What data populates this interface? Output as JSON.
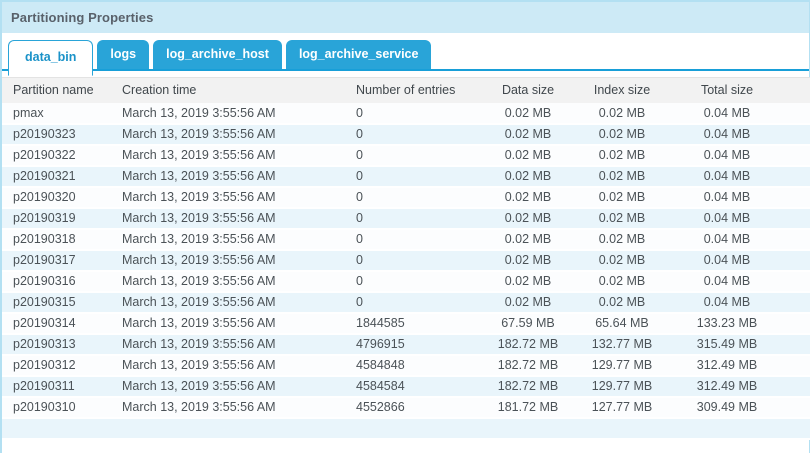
{
  "panel": {
    "title": "Partitioning Properties"
  },
  "tabs": [
    {
      "label": "data_bin",
      "active": true
    },
    {
      "label": "logs",
      "active": false
    },
    {
      "label": "log_archive_host",
      "active": false
    },
    {
      "label": "log_archive_service",
      "active": false
    }
  ],
  "table": {
    "columns": [
      "Partition name",
      "Creation time",
      "Number of entries",
      "Data size",
      "Index size",
      "Total size"
    ],
    "rows": [
      [
        "pmax",
        "March 13, 2019 3:55:56 AM",
        "0",
        "0.02 MB",
        "0.02 MB",
        "0.04 MB"
      ],
      [
        "p20190323",
        "March 13, 2019 3:55:56 AM",
        "0",
        "0.02 MB",
        "0.02 MB",
        "0.04 MB"
      ],
      [
        "p20190322",
        "March 13, 2019 3:55:56 AM",
        "0",
        "0.02 MB",
        "0.02 MB",
        "0.04 MB"
      ],
      [
        "p20190321",
        "March 13, 2019 3:55:56 AM",
        "0",
        "0.02 MB",
        "0.02 MB",
        "0.04 MB"
      ],
      [
        "p20190320",
        "March 13, 2019 3:55:56 AM",
        "0",
        "0.02 MB",
        "0.02 MB",
        "0.04 MB"
      ],
      [
        "p20190319",
        "March 13, 2019 3:55:56 AM",
        "0",
        "0.02 MB",
        "0.02 MB",
        "0.04 MB"
      ],
      [
        "p20190318",
        "March 13, 2019 3:55:56 AM",
        "0",
        "0.02 MB",
        "0.02 MB",
        "0.04 MB"
      ],
      [
        "p20190317",
        "March 13, 2019 3:55:56 AM",
        "0",
        "0.02 MB",
        "0.02 MB",
        "0.04 MB"
      ],
      [
        "p20190316",
        "March 13, 2019 3:55:56 AM",
        "0",
        "0.02 MB",
        "0.02 MB",
        "0.04 MB"
      ],
      [
        "p20190315",
        "March 13, 2019 3:55:56 AM",
        "0",
        "0.02 MB",
        "0.02 MB",
        "0.04 MB"
      ],
      [
        "p20190314",
        "March 13, 2019 3:55:56 AM",
        "1844585",
        "67.59 MB",
        "65.64 MB",
        "133.23 MB"
      ],
      [
        "p20190313",
        "March 13, 2019 3:55:56 AM",
        "4796915",
        "182.72 MB",
        "132.77 MB",
        "315.49 MB"
      ],
      [
        "p20190312",
        "March 13, 2019 3:55:56 AM",
        "4584848",
        "182.72 MB",
        "129.77 MB",
        "312.49 MB"
      ],
      [
        "p20190311",
        "March 13, 2019 3:55:56 AM",
        "4584584",
        "182.72 MB",
        "129.77 MB",
        "312.49 MB"
      ],
      [
        "p20190310",
        "March 13, 2019 3:55:56 AM",
        "4552866",
        "181.72 MB",
        "127.77 MB",
        "309.49 MB"
      ]
    ]
  },
  "colors": {
    "tab_blue": "#29a4d8",
    "tab_underline": "#189fd8",
    "active_tab_text": "#1a92c8",
    "titlebar_bg": "#cdeaf6",
    "panel_border": "#b3e0f2",
    "header_bg": "#f2f2f2",
    "row_alt_bg": "#e9f5fb",
    "row_bg": "#fcfdfe"
  }
}
